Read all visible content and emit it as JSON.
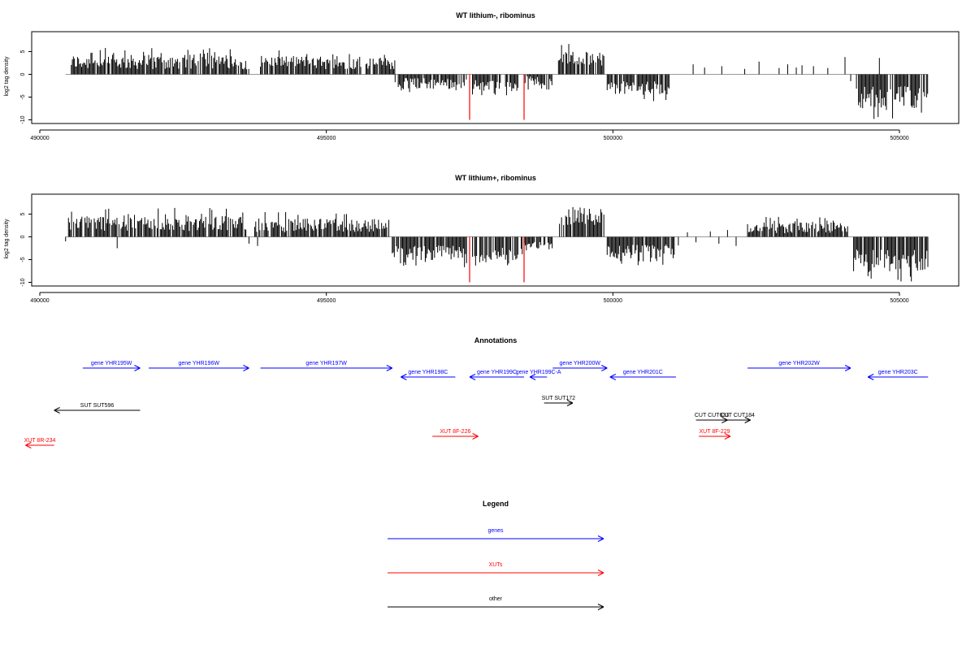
{
  "chart_data": [
    {
      "type": "bar",
      "title": "WT lithium-, ribominus",
      "ylabel": "log2 tag density",
      "xlabel": "",
      "xlim": [
        489700,
        506000
      ],
      "ylim": [
        -10,
        9
      ],
      "x_ticks": [
        490000,
        495000,
        500000,
        505000
      ],
      "y_ticks": [
        -10,
        -5,
        0,
        5
      ],
      "series": [
        {
          "color": "#000000",
          "segments": [
            {
              "x0": 490550,
              "x1": 493650,
              "base": 2.7,
              "amp": 1.6
            },
            {
              "x0": 493850,
              "x1": 494700,
              "base": 2.8,
              "amp": 1.3
            },
            {
              "x0": 494700,
              "x1": 496200,
              "base": 2.4,
              "amp": 1.3
            },
            {
              "x0": 496200,
              "x1": 497450,
              "base": -2.0,
              "amp": 1.2
            },
            {
              "x0": 497550,
              "x1": 498350,
              "base": -2.5,
              "amp": 1.3
            },
            {
              "x0": 498450,
              "x1": 498950,
              "base": -1.4,
              "amp": 1.0
            },
            {
              "x0": 499050,
              "x1": 499850,
              "base": 3.5,
              "amp": 1.6
            },
            {
              "x0": 499900,
              "x1": 501000,
              "base": -3.0,
              "amp": 1.5
            },
            {
              "x0": 504250,
              "x1": 505500,
              "base": -5.0,
              "amp": 2.5
            }
          ],
          "sparse": [
            [
              501400,
              2.2
            ],
            [
              501600,
              1.5
            ],
            [
              501900,
              1.8
            ],
            [
              502300,
              1.2
            ],
            [
              502550,
              2.8
            ],
            [
              502900,
              1.4
            ],
            [
              503050,
              2.2
            ],
            [
              503200,
              1.5
            ],
            [
              503300,
              2.0
            ],
            [
              503500,
              1.8
            ],
            [
              503750,
              1.4
            ],
            [
              504050,
              3.8
            ],
            [
              504150,
              -1.5
            ],
            [
              504650,
              3.6
            ]
          ]
        },
        {
          "color": "#ff0000",
          "spikes": [
            [
              497500,
              -10
            ],
            [
              498450,
              -10
            ]
          ]
        }
      ]
    },
    {
      "type": "bar",
      "title": "WT lithium+, ribominus",
      "ylabel": "log2 tag density",
      "xlabel": "",
      "xlim": [
        489700,
        506000
      ],
      "ylim": [
        -10,
        9
      ],
      "x_ticks": [
        490000,
        495000,
        500000,
        505000
      ],
      "y_ticks": [
        -10,
        -5,
        0,
        5
      ],
      "series": [
        {
          "color": "#000000",
          "segments": [
            {
              "x0": 490500,
              "x1": 493600,
              "base": 3.0,
              "amp": 1.7
            },
            {
              "x0": 493750,
              "x1": 496100,
              "base": 2.5,
              "amp": 1.5
            },
            {
              "x0": 496150,
              "x1": 497450,
              "base": -3.5,
              "amp": 1.6
            },
            {
              "x0": 497550,
              "x1": 498350,
              "base": -4.0,
              "amp": 1.6
            },
            {
              "x0": 498400,
              "x1": 498950,
              "base": -2.0,
              "amp": 1.0
            },
            {
              "x0": 499050,
              "x1": 499850,
              "base": 4.5,
              "amp": 2.0
            },
            {
              "x0": 499900,
              "x1": 501150,
              "base": -3.2,
              "amp": 1.6
            },
            {
              "x0": 502350,
              "x1": 504100,
              "base": 2.0,
              "amp": 1.2
            },
            {
              "x0": 504200,
              "x1": 505500,
              "base": -5.2,
              "amp": 2.6
            }
          ],
          "sparse": [
            [
              490450,
              -1.0
            ],
            [
              491350,
              -2.5
            ],
            [
              493650,
              -1.5
            ],
            [
              493800,
              -2.0
            ],
            [
              501300,
              1.0
            ],
            [
              501450,
              -1.2
            ],
            [
              501700,
              1.2
            ],
            [
              501850,
              -1.5
            ],
            [
              502000,
              1.5
            ],
            [
              502150,
              -2.0
            ]
          ]
        },
        {
          "color": "#ff0000",
          "spikes": [
            [
              497500,
              -10
            ],
            [
              498450,
              -10
            ]
          ]
        }
      ]
    }
  ],
  "annotations": {
    "title": "Annotations",
    "features": [
      {
        "label": "gene YHR195W",
        "x0": 490750,
        "x1": 491750,
        "dir": "right",
        "row": 0,
        "color": "#0000ff"
      },
      {
        "label": "gene YHR196W",
        "x0": 491900,
        "x1": 493650,
        "dir": "right",
        "row": 0,
        "color": "#0000ff"
      },
      {
        "label": "gene YHR197W",
        "x0": 493850,
        "x1": 496150,
        "dir": "right",
        "row": 0,
        "color": "#0000ff"
      },
      {
        "label": "gene YHR198C",
        "x0": 496300,
        "x1": 497250,
        "dir": "left",
        "row": 1,
        "color": "#0000ff"
      },
      {
        "label": "gene YHR199C",
        "x0": 497500,
        "x1": 498450,
        "dir": "left",
        "row": 1,
        "color": "#0000ff"
      },
      {
        "label": "gene YHR199C-A",
        "x0": 498550,
        "x1": 498850,
        "dir": "left",
        "row": 1,
        "color": "#0000ff"
      },
      {
        "label": "gene YHR200W",
        "x0": 498950,
        "x1": 499900,
        "dir": "right",
        "row": 0,
        "color": "#0000ff"
      },
      {
        "label": "gene YHR201C",
        "x0": 499950,
        "x1": 501100,
        "dir": "left",
        "row": 1,
        "color": "#0000ff"
      },
      {
        "label": "gene YHR202W",
        "x0": 502350,
        "x1": 504150,
        "dir": "right",
        "row": 0,
        "color": "#0000ff"
      },
      {
        "label": "gene YHR203C",
        "x0": 504450,
        "x1": 505500,
        "dir": "left",
        "row": 1,
        "color": "#0000ff"
      },
      {
        "label": "SUT SUT596",
        "x0": 490250,
        "x1": 491750,
        "dir": "left",
        "row": 2,
        "color": "#000000"
      },
      {
        "label": "SUT SUT172",
        "x0": 498800,
        "x1": 499300,
        "dir": "right",
        "row": 3,
        "color": "#000000"
      },
      {
        "label": "CUT CUT633",
        "x0": 501450,
        "x1": 502000,
        "dir": "right",
        "row": 4,
        "color": "#000000"
      },
      {
        "label": "CUT CUT184",
        "x0": 501950,
        "x1": 502400,
        "dir": "right",
        "row": 4,
        "color": "#000000"
      },
      {
        "label": "XUT 8F-226",
        "x0": 496850,
        "x1": 497650,
        "dir": "right",
        "row": 5,
        "color": "#ff0000"
      },
      {
        "label": "XUT 8F-229",
        "x0": 501500,
        "x1": 502050,
        "dir": "right",
        "row": 5,
        "color": "#ff0000"
      },
      {
        "label": "XUT 8R-234",
        "x0": 489750,
        "x1": 490250,
        "dir": "left",
        "row": 6,
        "color": "#ff0000"
      }
    ]
  },
  "legend": {
    "title": "Legend",
    "items": [
      {
        "label": "genes",
        "color": "#0000ff"
      },
      {
        "label": "XUTs",
        "color": "#ff0000"
      },
      {
        "label": "other",
        "color": "#000000"
      }
    ]
  }
}
